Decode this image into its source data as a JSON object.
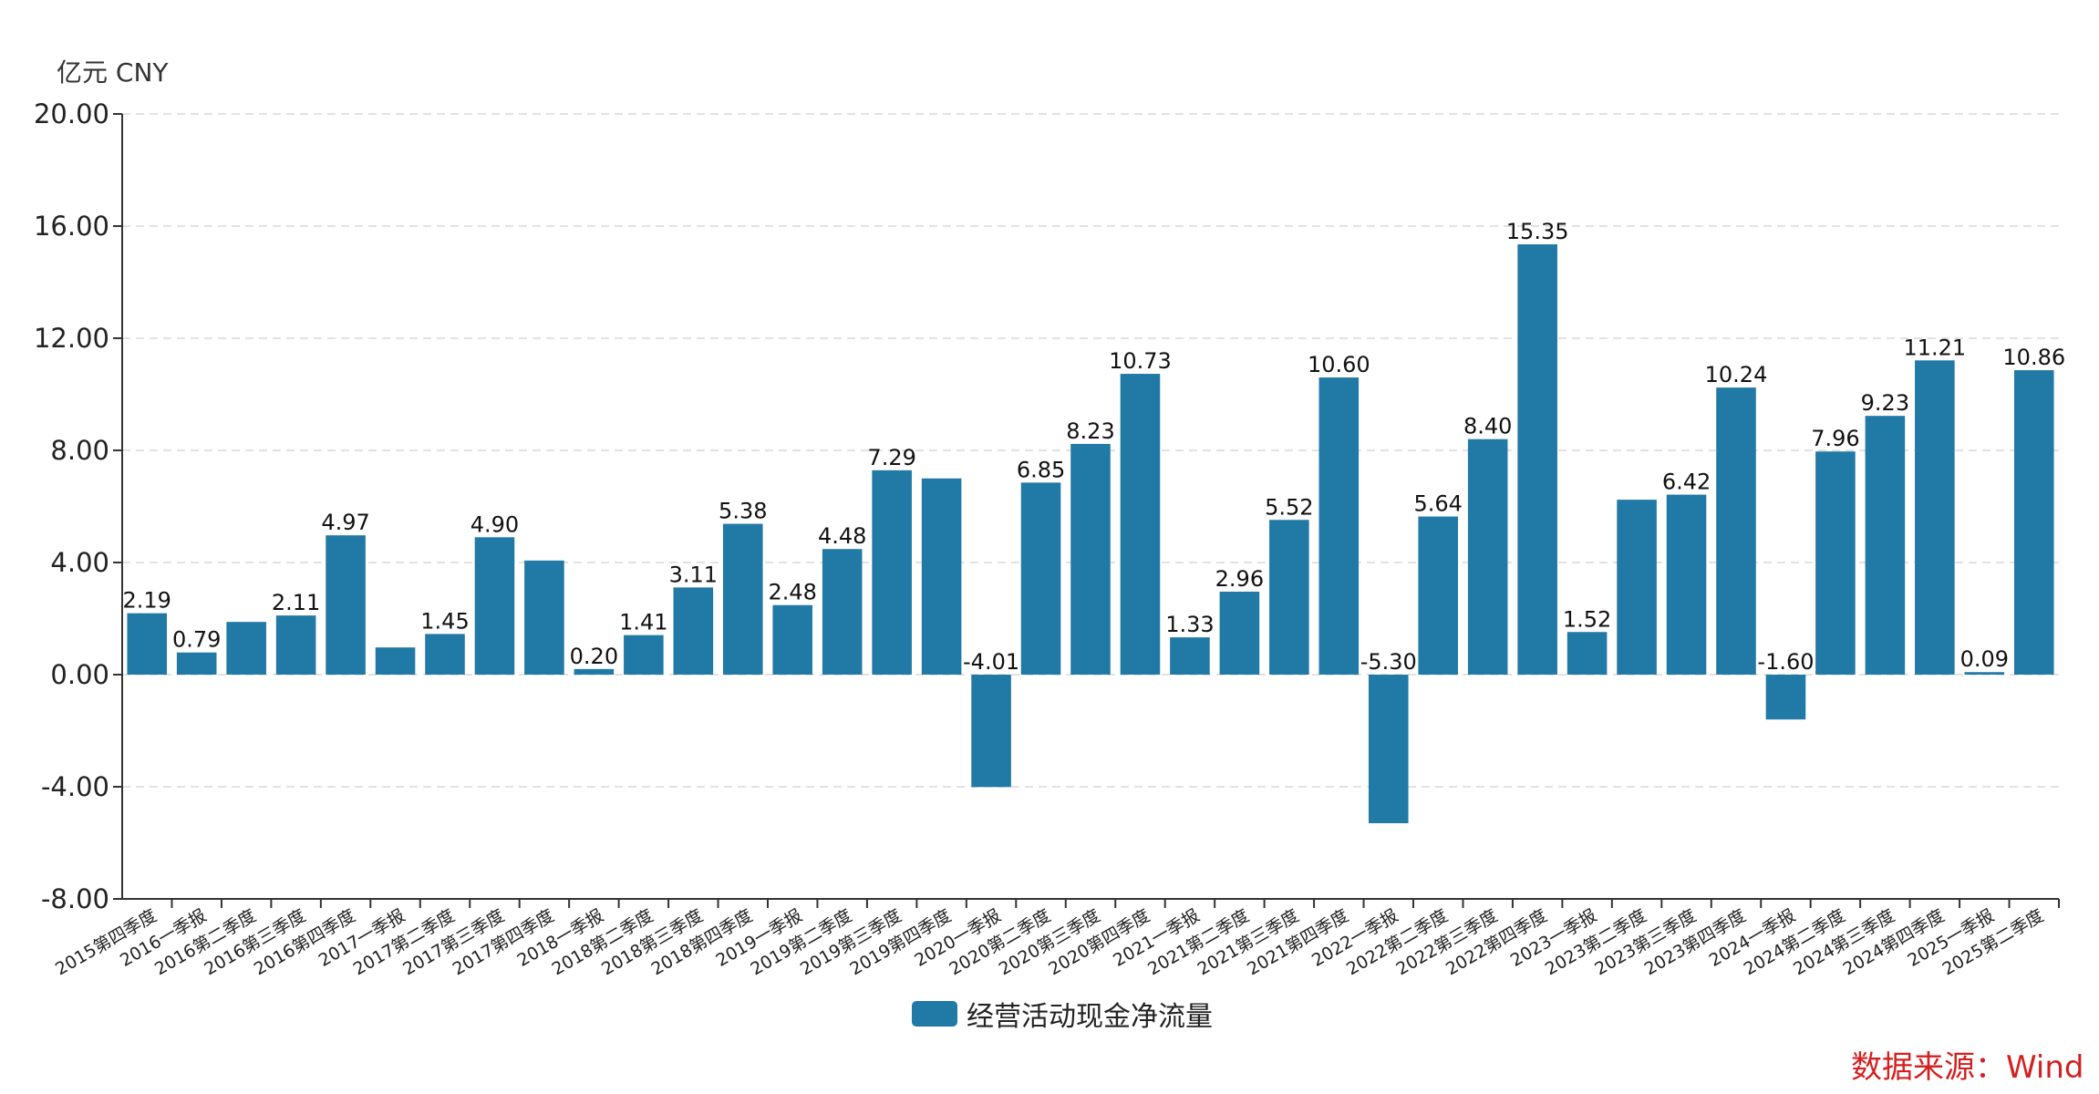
{
  "unit_label": "亿元  CNY",
  "source_label": "数据来源：Wind",
  "colors": {
    "bar": "#2179a5",
    "source": "#d42020"
  },
  "chart_data": {
    "type": "bar",
    "ylim": [
      -8,
      20
    ],
    "yticks": [
      -8,
      -4,
      0,
      4,
      8,
      12,
      16,
      20
    ],
    "ytick_labels": [
      "-8.00",
      "-4.00",
      "0.00",
      "4.00",
      "8.00",
      "12.00",
      "16.00",
      "20.00"
    ],
    "grid": true,
    "legend_position": "bottom-center",
    "categories": [
      "2015第四季度",
      "2016一季报",
      "2016第二季度",
      "2016第三季度",
      "2016第四季度",
      "2017一季报",
      "2017第二季度",
      "2017第三季度",
      "2017第四季度",
      "2018一季报",
      "2018第二季度",
      "2018第三季度",
      "2018第四季度",
      "2019一季报",
      "2019第二季度",
      "2019第三季度",
      "2019第四季度",
      "2020一季报",
      "2020第二季度",
      "2020第三季度",
      "2020第四季度",
      "2021一季报",
      "2021第二季度",
      "2021第三季度",
      "2021第四季度",
      "2022一季报",
      "2022第二季度",
      "2022第三季度",
      "2022第四季度",
      "2023一季报",
      "2023第二季度",
      "2023第三季度",
      "2023第四季度",
      "2024一季报",
      "2024第二季度",
      "2024第三季度",
      "2024第四季度",
      "2025一季报",
      "2025第二季度"
    ],
    "series": [
      {
        "name": "经营活动现金净流量",
        "values": [
          2.19,
          0.79,
          1.88,
          2.11,
          4.97,
          0.97,
          1.45,
          4.9,
          4.07,
          0.2,
          1.41,
          3.11,
          5.38,
          2.48,
          4.48,
          7.29,
          7.0,
          -4.01,
          6.85,
          8.23,
          10.73,
          1.33,
          2.96,
          5.52,
          10.6,
          -5.3,
          5.64,
          8.4,
          15.35,
          1.52,
          6.24,
          6.42,
          10.24,
          -1.6,
          7.96,
          9.23,
          11.21,
          0.09,
          10.86
        ],
        "labels": [
          "2.19",
          "0.79",
          "",
          "2.11",
          "4.97",
          "",
          "1.45",
          "4.90",
          "",
          "0.20",
          "1.41",
          "3.11",
          "5.38",
          "2.48",
          "4.48",
          "7.29",
          "",
          "-4.01",
          "6.85",
          "8.23",
          "10.73",
          "1.33",
          "2.96",
          "5.52",
          "10.60",
          "-5.30",
          "5.64",
          "8.40",
          "15.35",
          "1.52",
          "",
          "6.42",
          "10.24",
          "-1.60",
          "7.96",
          "9.23",
          "11.21",
          "0.09",
          "10.86"
        ]
      }
    ]
  }
}
